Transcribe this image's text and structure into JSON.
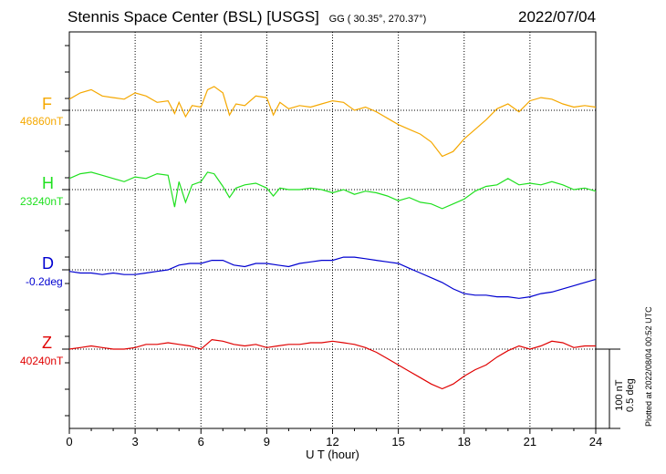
{
  "header": {
    "station": "Stennis Space Center (BSL)  [USGS]",
    "coords": "GG ( 30.35°, 270.37°)",
    "date": "2022/07/04"
  },
  "plotted_note": "Plotted at 2022/08/04 00:52 UTC",
  "scale": {
    "nt": "100 nT",
    "deg": "0.5 deg"
  },
  "channels": [
    {
      "id": "F",
      "label": "F",
      "base": "46860nT",
      "color": "#f5a800"
    },
    {
      "id": "H",
      "label": "H",
      "base": "23240nT",
      "color": "#1fe01f"
    },
    {
      "id": "D",
      "label": "D",
      "base": "-0.2deg",
      "color": "#0000d0"
    },
    {
      "id": "Z",
      "label": "Z",
      "base": "40240nT",
      "color": "#e00000"
    }
  ],
  "chart_data": {
    "type": "line",
    "xlabel": "U T (hour)",
    "xlim": [
      0,
      24
    ],
    "xticks": [
      "0",
      "3",
      "6",
      "9",
      "12",
      "15",
      "18",
      "21",
      "24"
    ],
    "series": [
      {
        "name": "F",
        "unit": "nT",
        "baseline": 46860,
        "x": [
          0,
          0.5,
          1,
          1.5,
          2,
          2.5,
          3,
          3.5,
          4,
          4.5,
          4.8,
          5,
          5.3,
          5.6,
          6,
          6.3,
          6.6,
          7,
          7.3,
          7.6,
          8,
          8.5,
          9,
          9.3,
          9.6,
          10,
          10.5,
          11,
          11.5,
          12,
          12.5,
          13,
          13.5,
          14,
          14.5,
          15,
          15.5,
          16,
          16.5,
          17,
          17.5,
          18,
          18.5,
          19,
          19.5,
          20,
          20.5,
          21,
          21.5,
          22,
          22.5,
          23,
          23.5,
          24
        ],
        "y": [
          14,
          22,
          26,
          18,
          16,
          14,
          22,
          18,
          10,
          12,
          -4,
          10,
          -8,
          6,
          4,
          26,
          30,
          22,
          -6,
          8,
          6,
          18,
          16,
          -6,
          10,
          2,
          6,
          4,
          8,
          12,
          10,
          0,
          4,
          -2,
          -10,
          -18,
          -24,
          -30,
          -40,
          -58,
          -52,
          -36,
          -24,
          -12,
          2,
          8,
          -2,
          12,
          16,
          14,
          8,
          4,
          6,
          4
        ]
      },
      {
        "name": "H",
        "unit": "nT",
        "baseline": 23240,
        "x": [
          0,
          0.5,
          1,
          1.5,
          2,
          2.5,
          3,
          3.5,
          4,
          4.5,
          4.8,
          5,
          5.3,
          5.6,
          6,
          6.3,
          6.6,
          7,
          7.3,
          7.6,
          8,
          8.5,
          9,
          9.3,
          9.6,
          10,
          10.5,
          11,
          11.5,
          12,
          12.5,
          13,
          13.5,
          14,
          14.5,
          15,
          15.5,
          16,
          16.5,
          17,
          17.5,
          18,
          18.5,
          19,
          19.5,
          20,
          20.5,
          21,
          21.5,
          22,
          22.5,
          23,
          23.5,
          24
        ],
        "y": [
          14,
          20,
          22,
          18,
          14,
          10,
          16,
          14,
          20,
          18,
          -22,
          10,
          -16,
          6,
          10,
          22,
          20,
          4,
          -10,
          2,
          6,
          8,
          2,
          -8,
          2,
          0,
          0,
          2,
          0,
          -4,
          0,
          -6,
          -2,
          -4,
          -8,
          -14,
          -10,
          -16,
          -18,
          -24,
          -18,
          -12,
          -2,
          4,
          6,
          14,
          6,
          8,
          6,
          10,
          6,
          0,
          2,
          -2
        ]
      },
      {
        "name": "D",
        "unit": "deg",
        "baseline": -0.2,
        "x": [
          0,
          0.5,
          1,
          1.5,
          2,
          2.5,
          3,
          3.5,
          4,
          4.5,
          5,
          5.5,
          6,
          6.5,
          7,
          7.5,
          8,
          8.5,
          9,
          9.5,
          10,
          10.5,
          11,
          11.5,
          12,
          12.5,
          13,
          13.5,
          14,
          14.5,
          15,
          15.5,
          16,
          16.5,
          17,
          17.5,
          18,
          18.5,
          19,
          19.5,
          20,
          20.5,
          21,
          21.5,
          22,
          22.5,
          23,
          23.5,
          24
        ],
        "y": [
          -0.01,
          -0.02,
          -0.02,
          -0.03,
          -0.02,
          -0.03,
          -0.03,
          -0.02,
          -0.01,
          0.0,
          0.03,
          0.04,
          0.04,
          0.06,
          0.06,
          0.03,
          0.02,
          0.04,
          0.04,
          0.03,
          0.02,
          0.04,
          0.05,
          0.06,
          0.06,
          0.08,
          0.08,
          0.07,
          0.06,
          0.05,
          0.04,
          0.01,
          -0.02,
          -0.05,
          -0.08,
          -0.12,
          -0.15,
          -0.16,
          -0.16,
          -0.17,
          -0.17,
          -0.18,
          -0.17,
          -0.15,
          -0.14,
          -0.12,
          -0.1,
          -0.08,
          -0.06
        ]
      },
      {
        "name": "Z",
        "unit": "nT",
        "baseline": 40240,
        "x": [
          0,
          0.5,
          1,
          1.5,
          2,
          2.5,
          3,
          3.5,
          4,
          4.5,
          5,
          5.5,
          6,
          6.5,
          7,
          7.5,
          8,
          8.5,
          9,
          9.5,
          10,
          10.5,
          11,
          11.5,
          12,
          12.5,
          13,
          13.5,
          14,
          14.5,
          15,
          15.5,
          16,
          16.5,
          17,
          17.5,
          18,
          18.5,
          19,
          19.5,
          20,
          20.5,
          21,
          21.5,
          22,
          22.5,
          23,
          23.5,
          24
        ],
        "y": [
          0,
          2,
          4,
          2,
          0,
          0,
          2,
          6,
          6,
          8,
          6,
          4,
          0,
          12,
          10,
          6,
          4,
          6,
          2,
          4,
          6,
          6,
          8,
          8,
          10,
          8,
          6,
          2,
          -4,
          -12,
          -20,
          -28,
          -36,
          -44,
          -50,
          -44,
          -34,
          -26,
          -20,
          -10,
          -2,
          4,
          0,
          4,
          10,
          8,
          2,
          4,
          4
        ]
      }
    ]
  }
}
